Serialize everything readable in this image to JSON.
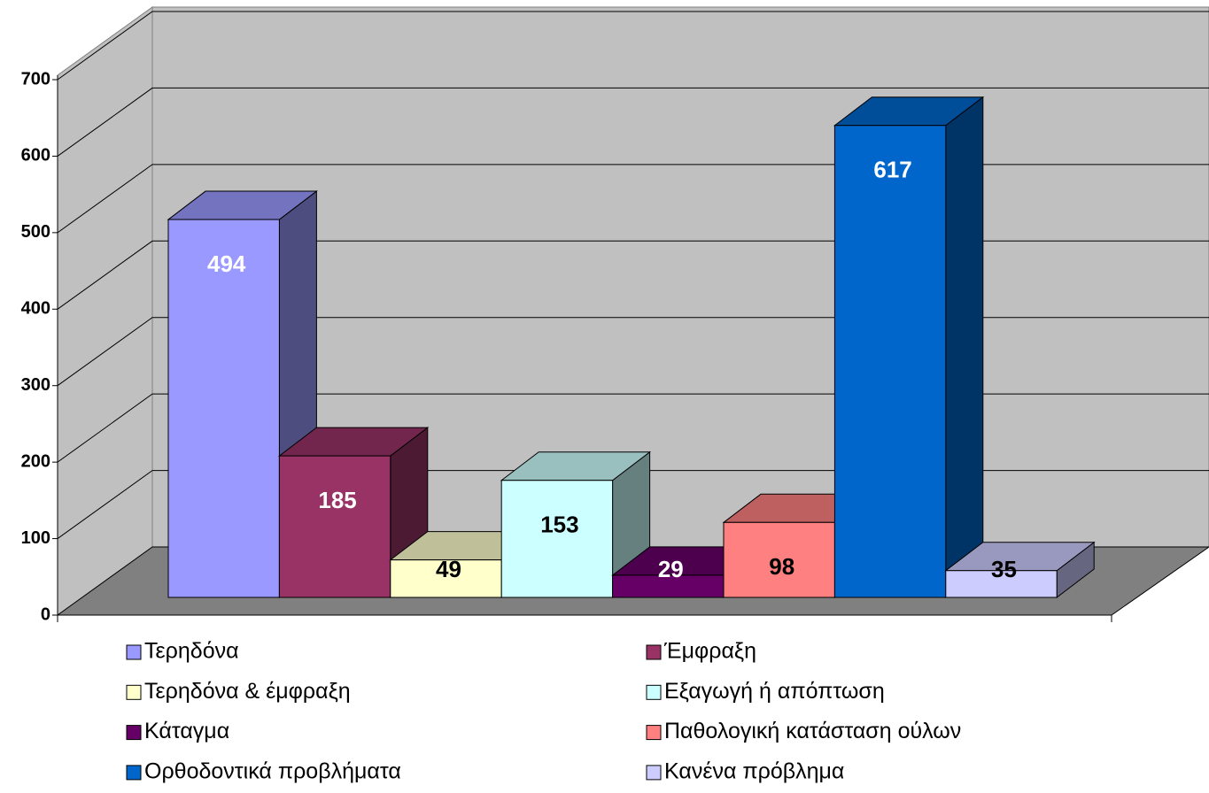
{
  "chart_data": {
    "type": "bar3d",
    "ylim": [
      0,
      700
    ],
    "yticks": [
      0,
      100,
      200,
      300,
      400,
      500,
      600,
      700
    ],
    "grid": true,
    "series": [
      {
        "name": "Τερηδόνα",
        "color": "#9999ff",
        "label_color": "#ffffff",
        "values": [
          494
        ]
      },
      {
        "name": "Έμφραξη",
        "color": "#993366",
        "label_color": "#ffffff",
        "values": [
          185
        ]
      },
      {
        "name": "Τερηδόνα & έμφραξη",
        "color": "#ffffcc",
        "label_color": "#000000",
        "values": [
          49
        ]
      },
      {
        "name": "Εξαγωγή ή απόπτωση",
        "color": "#ccffff",
        "label_color": "#000000",
        "values": [
          153
        ]
      },
      {
        "name": "Κάταγμα",
        "color": "#660066",
        "label_color": "#ffffff",
        "values": [
          29
        ]
      },
      {
        "name": "Παθολογική κατάσταση ούλων",
        "color": "#ff8080",
        "label_color": "#000000",
        "values": [
          98
        ]
      },
      {
        "name": "Ορθοδοντικά προβλήματα",
        "color": "#0066cc",
        "label_color": "#ffffff",
        "values": [
          617
        ]
      },
      {
        "name": "Κανένα πρόβλημα",
        "color": "#ccccff",
        "label_color": "#000000",
        "values": [
          35
        ]
      }
    ]
  }
}
